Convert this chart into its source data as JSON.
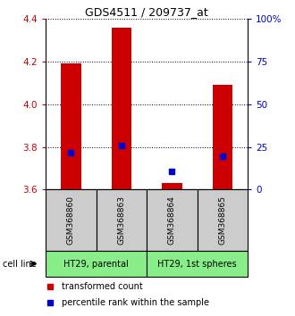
{
  "title": "GDS4511 / 209737_at",
  "samples": [
    "GSM368860",
    "GSM368863",
    "GSM368864",
    "GSM368865"
  ],
  "red_values": [
    4.19,
    4.36,
    3.63,
    4.09
  ],
  "blue_values": [
    3.775,
    3.805,
    3.685,
    3.755
  ],
  "ylim_left": [
    3.6,
    4.4
  ],
  "ylim_right": [
    0,
    100
  ],
  "yticks_left": [
    3.6,
    3.8,
    4.0,
    4.2,
    4.4
  ],
  "yticks_right": [
    0,
    25,
    50,
    75,
    100
  ],
  "ytick_labels_right": [
    "0",
    "25",
    "50",
    "75",
    "100%"
  ],
  "bar_width": 0.4,
  "red_color": "#cc0000",
  "blue_color": "#0000cc",
  "cell_line_groups": [
    {
      "label": "HT29, parental",
      "samples": [
        0,
        1
      ],
      "color": "#88ee88"
    },
    {
      "label": "HT29, 1st spheres",
      "samples": [
        2,
        3
      ],
      "color": "#88ee88"
    }
  ],
  "cell_line_label": "cell line",
  "legend_red": "transformed count",
  "legend_blue": "percentile rank within the sample",
  "sample_box_color": "#cccccc",
  "background_color": "#ffffff",
  "left_label_color": "#cc0000",
  "right_label_color": "#0000cc",
  "grid_yticks": [
    3.8,
    4.0,
    4.2,
    4.4
  ]
}
